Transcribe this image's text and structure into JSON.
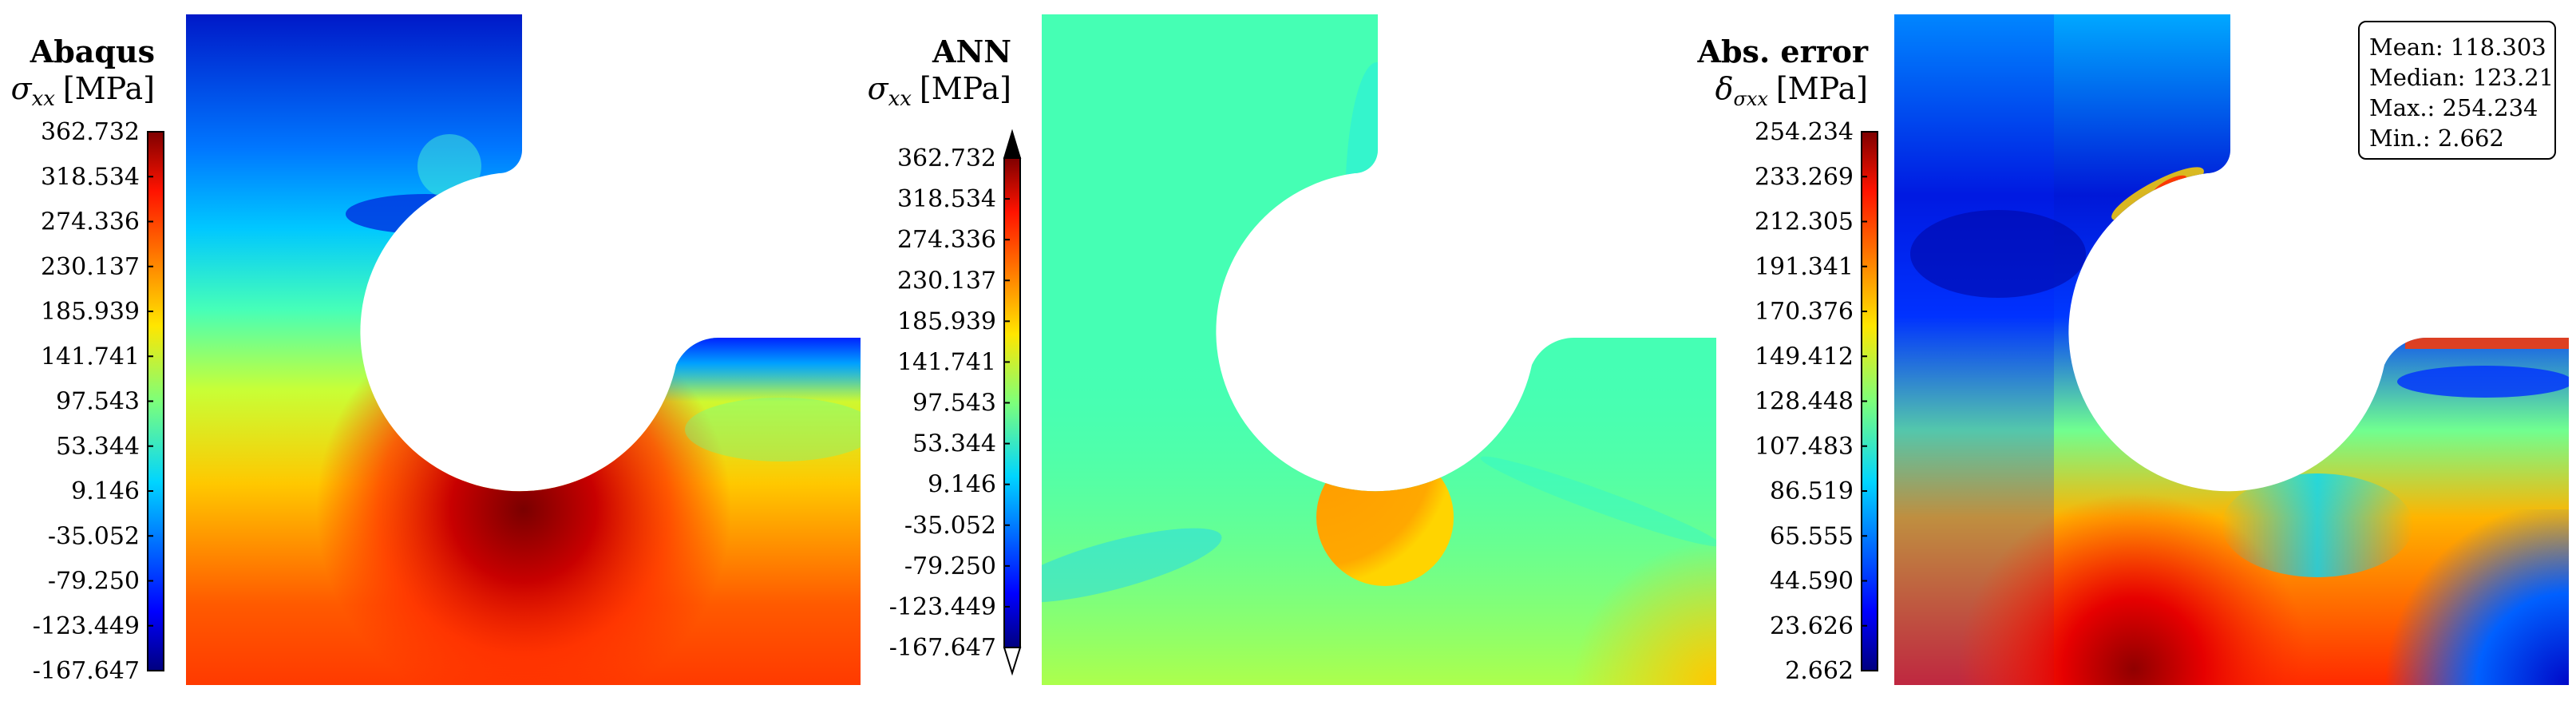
{
  "chart_data": [
    {
      "type": "heatmap",
      "title": "Abaqus",
      "quantity": {
        "symbol": "σ",
        "subscript": "xx",
        "unit": "[MPa]"
      },
      "colormap": "jet",
      "colorbar_ticks": [
        "362.732",
        "318.534",
        "274.336",
        "230.137",
        "185.939",
        "141.741",
        "97.543",
        "53.344",
        "9.146",
        "-35.052",
        "-79.250",
        "-123.449",
        "-167.647"
      ],
      "range": [
        -167.647,
        362.732
      ],
      "colorbar_extend": "none"
    },
    {
      "type": "heatmap",
      "title": "ANN",
      "quantity": {
        "symbol": "σ",
        "subscript": "xx",
        "unit": "[MPa]"
      },
      "colormap": "jet",
      "colorbar_ticks": [
        "362.732",
        "318.534",
        "274.336",
        "230.137",
        "185.939",
        "141.741",
        "97.543",
        "53.344",
        "9.146",
        "-35.052",
        "-79.250",
        "-123.449",
        "-167.647"
      ],
      "range": [
        -167.647,
        362.732
      ],
      "colorbar_extend": "both"
    },
    {
      "type": "heatmap",
      "title": "Abs. error",
      "quantity": {
        "symbol": "δ",
        "subscript": "σxx",
        "unit": "[MPa]"
      },
      "colormap": "jet",
      "colorbar_ticks": [
        "254.234",
        "233.269",
        "212.305",
        "191.341",
        "170.376",
        "149.412",
        "128.448",
        "107.483",
        "86.519",
        "65.555",
        "44.590",
        "23.626",
        "2.662"
      ],
      "range": [
        2.662,
        254.234
      ],
      "colorbar_extend": "none",
      "stats": {
        "mean": "Mean: 118.303",
        "median": "Median: 123.21",
        "max": "Max.: 254.234",
        "min": "Min.: 2.662"
      }
    }
  ]
}
